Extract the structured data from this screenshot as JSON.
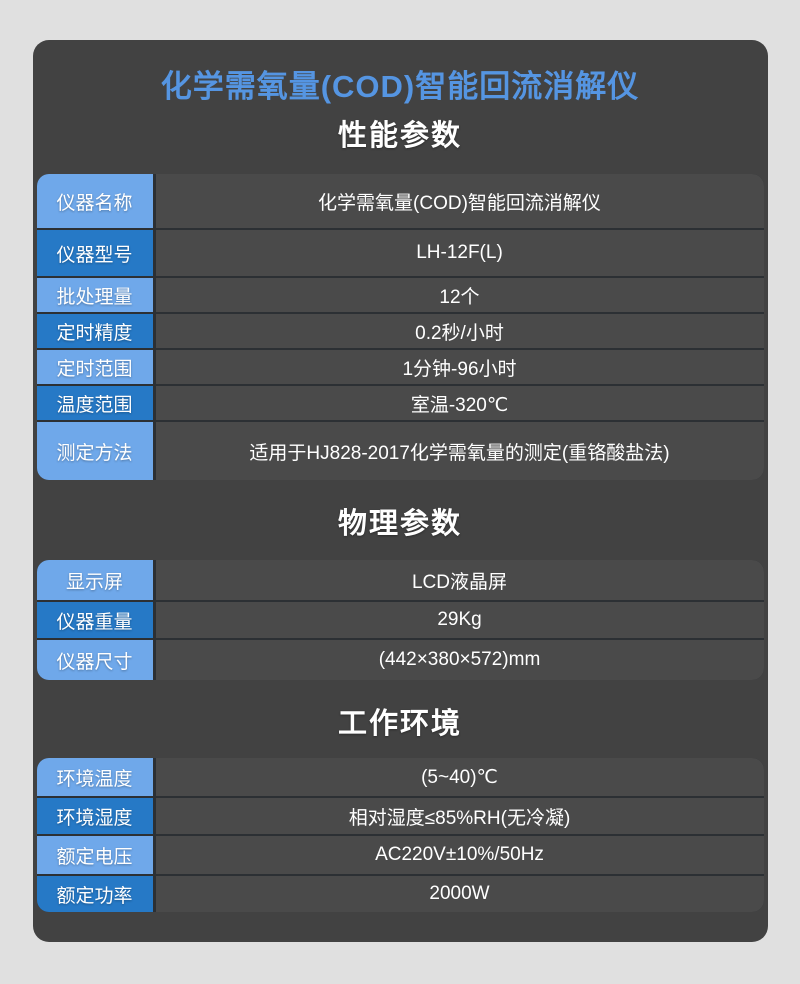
{
  "colors": {
    "page_bg": "#e0e0e0",
    "card_bg": "#424242",
    "cell_bg": "#4a4a4a",
    "separator": "#2c3034",
    "label_light_blue": "#6fa8ea",
    "label_dark_blue": "#2679c6",
    "title_blue": "#5595e2",
    "text_white": "#ffffff"
  },
  "page": {
    "title": "化学需氧量(COD)智能回流消解仪"
  },
  "sections": [
    {
      "heading": "性能参数",
      "rows": [
        {
          "label": "仪器名称",
          "value": "化学需氧量(COD)智能回流消解仪"
        },
        {
          "label": "仪器型号",
          "value": "LH-12F(L)"
        },
        {
          "label": "批处理量",
          "value": "12个"
        },
        {
          "label": "定时精度",
          "value": "0.2秒/小时"
        },
        {
          "label": "定时范围",
          "value": "1分钟-96小时"
        },
        {
          "label": "温度范围",
          "value": "室温-320℃"
        },
        {
          "label": "测定方法",
          "value": "适用于HJ828-2017化学需氧量的测定(重铬酸盐法)"
        }
      ]
    },
    {
      "heading": "物理参数",
      "rows": [
        {
          "label": "显示屏",
          "value": "LCD液晶屏"
        },
        {
          "label": "仪器重量",
          "value": "29Kg"
        },
        {
          "label": "仪器尺寸",
          "value": "(442×380×572)mm"
        }
      ]
    },
    {
      "heading": "工作环境",
      "rows": [
        {
          "label": "环境温度",
          "value": "(5~40)℃"
        },
        {
          "label": "环境湿度",
          "value": "相对湿度≤85%RH(无冷凝)"
        },
        {
          "label": "额定电压",
          "value": "AC220V±10%/50Hz"
        },
        {
          "label": "额定功率",
          "value": "2000W"
        }
      ]
    }
  ]
}
